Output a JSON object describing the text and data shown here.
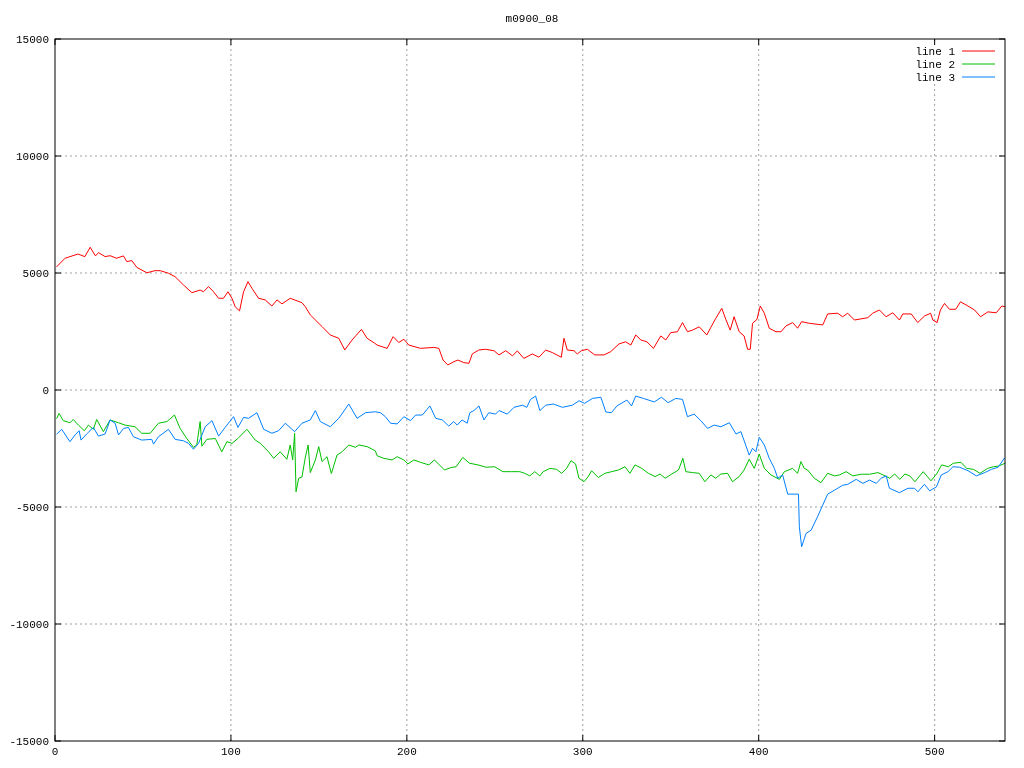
{
  "chart_data": {
    "type": "line",
    "title": "m0900_08",
    "xlim": [
      0,
      540
    ],
    "ylim": [
      -15000,
      15000
    ],
    "xticks": [
      0,
      100,
      200,
      300,
      400,
      500
    ],
    "yticks": [
      -15000,
      -10000,
      -5000,
      0,
      5000,
      10000,
      15000
    ],
    "grid": true,
    "legend": "top right",
    "series": [
      {
        "name": "line 1",
        "color": "#ff0000",
        "x": [
          1,
          5.7,
          13,
          17,
          20,
          23,
          24.7,
          28.5,
          31.3,
          35,
          38.9,
          40.8,
          43.7,
          46.5,
          52.2,
          56.9,
          59.8,
          64.5,
          68.3,
          73,
          77.8,
          82.5,
          84.4,
          87.3,
          90.1,
          93,
          95.8,
          98.3,
          100.6,
          102.4,
          104.9,
          107.2,
          109.7,
          112,
          115.7,
          119.5,
          123.3,
          126.2,
          129,
          133.7,
          140.4,
          142.3,
          145.1,
          151.8,
          156.5,
          161.3,
          164.7,
          168.9,
          174.2,
          177.4,
          181.7,
          183.1,
          188.8,
          192.2,
          195.4,
          198.3,
          201.1,
          207.7,
          215.3,
          218.2,
          220.6,
          223.3,
          226.7,
          229,
          232.4,
          235.3,
          237.2,
          240.9,
          244.7,
          249.5,
          252.4,
          256.2,
          260,
          262.8,
          266.5,
          271.3,
          275.1,
          278.9,
          282.7,
          287.8,
          289.3,
          291.2,
          295,
          296.9,
          299.2,
          302.6,
          306.8,
          312.1,
          315.9,
          320.6,
          324.4,
          327.3,
          330.1,
          333,
          336.4,
          340.2,
          344.3,
          347.2,
          350,
          353.8,
          356.7,
          359.5,
          362.4,
          366.2,
          370.5,
          372.8,
          375.6,
          379,
          381.3,
          383.8,
          386,
          388.9,
          391.7,
          393.7,
          395.2,
          396.5,
          399,
          400.9,
          403.2,
          406,
          409.8,
          412.7,
          415.5,
          419.3,
          422.1,
          424.4,
          428.8,
          436.4,
          439.2,
          444.9,
          447.7,
          450.6,
          454.4,
          462,
          464.8,
          468.6,
          472.4,
          476.2,
          480,
          481.9,
          486.7,
          490.4,
          494.2,
          497.7,
          499,
          501.4,
          503.3,
          505.6,
          508.4,
          512,
          514.7,
          518.9,
          522.7,
          526.1,
          530.3,
          535,
          538.2,
          540
        ],
        "values": [
          5270,
          5630,
          5810,
          5700,
          6100,
          5730,
          5870,
          5700,
          5740,
          5630,
          5730,
          5490,
          5530,
          5240,
          5010,
          5100,
          5100,
          4990,
          4840,
          4490,
          4160,
          4270,
          4200,
          4420,
          4200,
          3920,
          3920,
          4200,
          3920,
          3560,
          3380,
          4200,
          4630,
          4340,
          3920,
          3850,
          3590,
          3850,
          3680,
          3920,
          3730,
          3560,
          3210,
          2710,
          2350,
          2210,
          1710,
          2140,
          2590,
          2210,
          2000,
          1920,
          1780,
          2280,
          2030,
          2170,
          1920,
          1780,
          1820,
          1780,
          1280,
          1070,
          1210,
          1280,
          1170,
          1140,
          1540,
          1710,
          1740,
          1680,
          1500,
          1680,
          1460,
          1670,
          1350,
          1540,
          1400,
          1710,
          1600,
          1400,
          2210,
          1710,
          1680,
          1540,
          1680,
          1740,
          1500,
          1500,
          1640,
          1970,
          2060,
          1920,
          2350,
          2140,
          2060,
          1780,
          2310,
          2140,
          2450,
          2490,
          2880,
          2490,
          2560,
          2700,
          2350,
          2680,
          3060,
          3490,
          3020,
          2560,
          3130,
          2490,
          2310,
          1740,
          1740,
          2850,
          3020,
          3590,
          3280,
          2640,
          2490,
          2490,
          2740,
          2880,
          2640,
          2920,
          2850,
          2780,
          3250,
          3280,
          3130,
          3280,
          2990,
          3090,
          3280,
          3420,
          3130,
          3300,
          2990,
          3250,
          3250,
          2880,
          3160,
          3280,
          2990,
          2880,
          3420,
          3700,
          3450,
          3450,
          3770,
          3590,
          3420,
          3130,
          3340,
          3300,
          3590,
          3560
        ]
      },
      {
        "name": "line 2",
        "color": "#00c000",
        "x": [
          1,
          2.3,
          4.7,
          8.5,
          10.4,
          13.3,
          16.7,
          19,
          21.8,
          23.7,
          27.5,
          31.3,
          36.1,
          39.8,
          45.5,
          49.3,
          54.1,
          58.8,
          63.6,
          67.9,
          71.1,
          74.9,
          78.7,
          80.6,
          82.5,
          83.5,
          86.3,
          91.1,
          94.8,
          97.7,
          100.6,
          104,
          109.1,
          113.8,
          116.7,
          121.4,
          124.3,
          128,
          131.8,
          133.7,
          135.1,
          136.2,
          137,
          138.5,
          140.4,
          142.3,
          143.9,
          145.1,
          148,
          149.9,
          151.8,
          154.6,
          157.1,
          160.3,
          163.2,
          167,
          170.8,
          172.7,
          177.4,
          182.1,
          183.1,
          186.9,
          191.6,
          194.5,
          198.3,
          200.6,
          204,
          207.7,
          212.5,
          215.7,
          221.4,
          225.2,
          228,
          231.8,
          235.6,
          240.4,
          245.1,
          249.9,
          254.6,
          259.4,
          264.2,
          267,
          269.9,
          272.7,
          275.6,
          277.5,
          281.3,
          285.1,
          288,
          290.8,
          293.3,
          295.9,
          297.8,
          300.7,
          303.1,
          305,
          308.8,
          312.6,
          316.4,
          320.2,
          324,
          326.8,
          329.7,
          333.5,
          337.3,
          341.1,
          343.9,
          346.8,
          350.6,
          354.4,
          356.9,
          358.6,
          362.4,
          366.2,
          369.4,
          372.8,
          375.6,
          378.5,
          382.3,
          385.1,
          388.9,
          391.7,
          394.6,
          397.5,
          400.3,
          403.2,
          407,
          411.7,
          414.6,
          419.3,
          422.1,
          424,
          425.9,
          427.8,
          431.6,
          435.4,
          439.2,
          443.1,
          445.9,
          449.7,
          453.5,
          458.3,
          463,
          467.8,
          470.7,
          474.5,
          477.3,
          480.2,
          483.1,
          485.9,
          488.8,
          493.5,
          497.9,
          501.1,
          504,
          507.8,
          510.6,
          515,
          518.2,
          522,
          525.8,
          530.1,
          533.4,
          536.3,
          540
        ],
        "values": [
          -1210,
          -1000,
          -1310,
          -1400,
          -1260,
          -1500,
          -1740,
          -1500,
          -1680,
          -1260,
          -1780,
          -1280,
          -1400,
          -1500,
          -1570,
          -1850,
          -1850,
          -1420,
          -1350,
          -1070,
          -1640,
          -2070,
          -2450,
          -2350,
          -1350,
          -2400,
          -2110,
          -2070,
          -2640,
          -2210,
          -2280,
          -2070,
          -1680,
          -2140,
          -2280,
          -2640,
          -2920,
          -2640,
          -2960,
          -2350,
          -2990,
          -1850,
          -4350,
          -3780,
          -3710,
          -2870,
          -2350,
          -3530,
          -2990,
          -2420,
          -3060,
          -2850,
          -3570,
          -2780,
          -2640,
          -2350,
          -2450,
          -2350,
          -2420,
          -2600,
          -2810,
          -2920,
          -2990,
          -2850,
          -2990,
          -3160,
          -2990,
          -3090,
          -3200,
          -2990,
          -3420,
          -3310,
          -3280,
          -2880,
          -3130,
          -3200,
          -3300,
          -3280,
          -3490,
          -3490,
          -3490,
          -3560,
          -3670,
          -3490,
          -3670,
          -3490,
          -3350,
          -3390,
          -3560,
          -3350,
          -3020,
          -3160,
          -3770,
          -3920,
          -3700,
          -3450,
          -3740,
          -3560,
          -3490,
          -3420,
          -3280,
          -3560,
          -3200,
          -3350,
          -3560,
          -3700,
          -3590,
          -3770,
          -3590,
          -3420,
          -2920,
          -3490,
          -3530,
          -3560,
          -3920,
          -3630,
          -3770,
          -3590,
          -3560,
          -3920,
          -3700,
          -3420,
          -2960,
          -3350,
          -2740,
          -3350,
          -3630,
          -3820,
          -3490,
          -3350,
          -3560,
          -3060,
          -3350,
          -3420,
          -3770,
          -3960,
          -3560,
          -3670,
          -3630,
          -3490,
          -3670,
          -3600,
          -3600,
          -3530,
          -3630,
          -3770,
          -3590,
          -3820,
          -3590,
          -3670,
          -3920,
          -3490,
          -3880,
          -3590,
          -3200,
          -3280,
          -3130,
          -3090,
          -3350,
          -3390,
          -3560,
          -3350,
          -3280,
          -3250,
          -3130
        ]
      },
      {
        "name": "line 3",
        "color": "#0080ff",
        "x": [
          1,
          3.8,
          8.5,
          11.4,
          13.7,
          14.8,
          18,
          21.8,
          24.7,
          28.5,
          31.3,
          34.2,
          36.1,
          39,
          41.7,
          44.6,
          49.3,
          55,
          56,
          58.8,
          64.5,
          68.3,
          73,
          75.9,
          78.7,
          81.6,
          85.4,
          89.2,
          93,
          96.7,
          101.5,
          104,
          107.2,
          110,
          114.8,
          118.6,
          123.3,
          127.1,
          130.9,
          136.2,
          140.4,
          145.1,
          148,
          150.8,
          156.5,
          161.3,
          167,
          171.7,
          176.5,
          182.1,
          185,
          187.8,
          190.7,
          194.5,
          198.3,
          202.1,
          205,
          208.8,
          213.1,
          216.4,
          220.2,
          223.8,
          226.7,
          228.6,
          231.4,
          234.3,
          235.8,
          238.1,
          241,
          243.8,
          246.6,
          250.4,
          252.4,
          257.1,
          260.9,
          265.7,
          268.2,
          270.3,
          273.2,
          275.6,
          278.9,
          283.3,
          288.4,
          294.1,
          297.9,
          301.1,
          305.5,
          310.3,
          313.1,
          316.3,
          319.4,
          325.1,
          327.7,
          330.1,
          334.5,
          340.6,
          344.7,
          348.5,
          352.9,
          356.7,
          359.5,
          363.3,
          367.1,
          370.9,
          374.7,
          378.5,
          383.3,
          387.1,
          389.9,
          394.6,
          396.5,
          398.4,
          400.3,
          403.2,
          406,
          408.9,
          410.8,
          413.6,
          416.5,
          422.6,
          423.1,
          424.4,
          426.9,
          429.8,
          433.6,
          436.4,
          439.2,
          443.1,
          447.8,
          450.6,
          455.4,
          459.2,
          463,
          466.8,
          469.6,
          472.5,
          474.3,
          480,
          484.8,
          488.6,
          490.5,
          494.2,
          497.2,
          501,
          503.8,
          507.6,
          510.4,
          514.2,
          519,
          523.7,
          528.5,
          532.3,
          536.1,
          539.6
        ],
        "values": [
          -1880,
          -1680,
          -2210,
          -1920,
          -1740,
          -2140,
          -1880,
          -1600,
          -1970,
          -1880,
          -1280,
          -1420,
          -1920,
          -1640,
          -1600,
          -2000,
          -2140,
          -2110,
          -2310,
          -2000,
          -1680,
          -2110,
          -2170,
          -2280,
          -2530,
          -2280,
          -1570,
          -1310,
          -1970,
          -1600,
          -1140,
          -1600,
          -1170,
          -1210,
          -970,
          -1680,
          -1850,
          -1740,
          -1420,
          -1780,
          -1420,
          -1280,
          -880,
          -1350,
          -1570,
          -1210,
          -600,
          -1210,
          -970,
          -930,
          -970,
          -1140,
          -1420,
          -1450,
          -1140,
          -1310,
          -1070,
          -1070,
          -680,
          -1210,
          -1280,
          -1540,
          -1350,
          -1500,
          -1280,
          -1420,
          -970,
          -880,
          -680,
          -1280,
          -970,
          -1030,
          -880,
          -1030,
          -740,
          -650,
          -740,
          -400,
          -260,
          -880,
          -650,
          -600,
          -740,
          -650,
          -460,
          -570,
          -360,
          -310,
          -940,
          -970,
          -680,
          -430,
          -680,
          -260,
          -360,
          -510,
          -310,
          -540,
          -360,
          -400,
          -1140,
          -1030,
          -1310,
          -1640,
          -1500,
          -1570,
          -1400,
          -1880,
          -1780,
          -2780,
          -2490,
          -2640,
          -2020,
          -2350,
          -2920,
          -3350,
          -3770,
          -3630,
          -4450,
          -4450,
          -5840,
          -6700,
          -6130,
          -5990,
          -5390,
          -4920,
          -4450,
          -4280,
          -4070,
          -4030,
          -3820,
          -3990,
          -3850,
          -3990,
          -3770,
          -3670,
          -4200,
          -4390,
          -4200,
          -4200,
          -4350,
          -4030,
          -4310,
          -4140,
          -3630,
          -3490,
          -3280,
          -3300,
          -3450,
          -3670,
          -3530,
          -3390,
          -3300,
          -2920
        ]
      }
    ]
  }
}
